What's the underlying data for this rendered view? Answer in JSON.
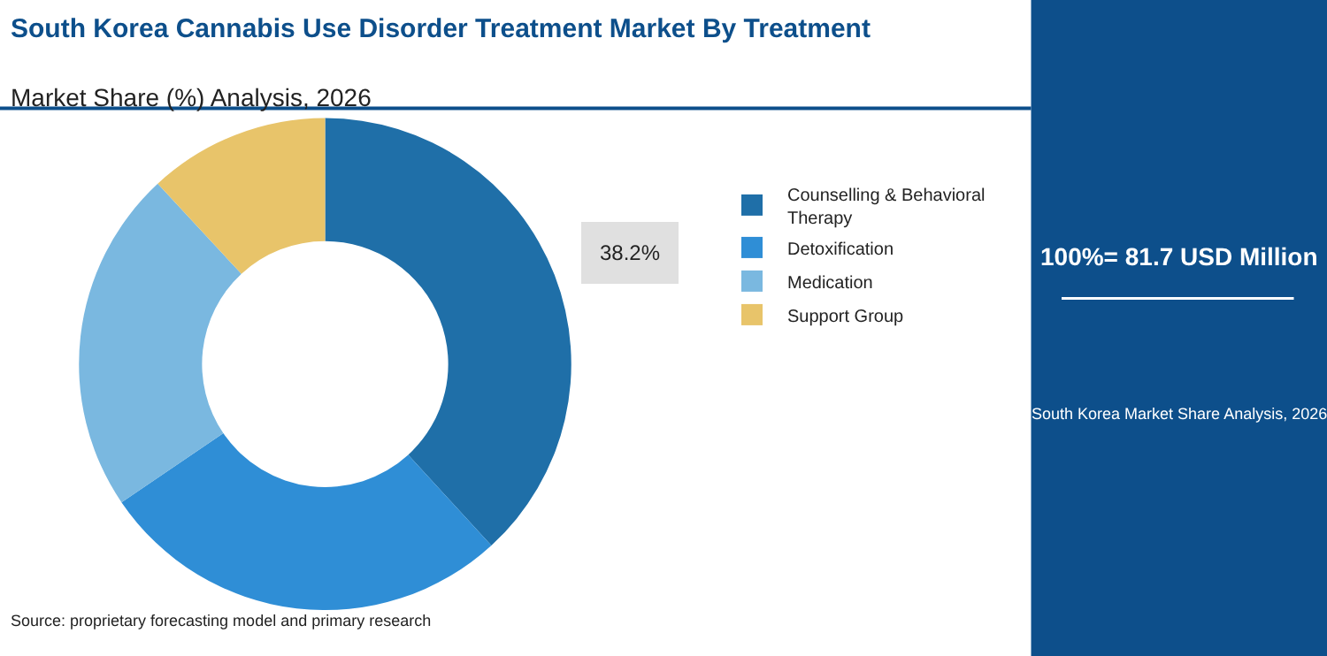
{
  "chart_data": {
    "type": "donut",
    "title": "South Korea Cannabis Use Disorder Treatment Market By Treatment",
    "subtitle": "Market Share (%) Analysis, 2026",
    "categories": [
      "Counselling & Behavioral Therapy",
      "Detoxification",
      "Medication",
      "Support Group"
    ],
    "values": [
      38.2,
      27.3,
      22.6,
      11.9
    ],
    "colors": [
      "#1f6fa8",
      "#2f8ed6",
      "#7ab8e0",
      "#e8c46a"
    ],
    "value_labels": [
      "38.2%",
      null,
      null,
      null
    ],
    "legend": "right",
    "annotations": [
      "100%= 81.7 USD Million",
      "South Korea Market Share Analysis, 2026",
      "Source: proprietary forecasting model and primary research"
    ]
  }
}
